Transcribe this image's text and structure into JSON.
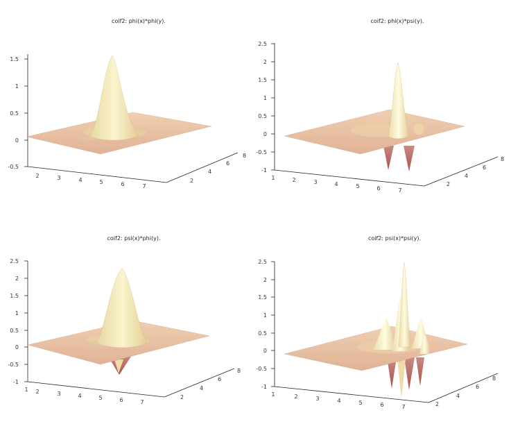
{
  "chart_data": [
    {
      "type": "surface3d",
      "title": "coif2: phi(x)*phi(y).",
      "colormap": "pink",
      "zlim": [
        -0.5,
        1.5
      ],
      "z_ticks": [
        "1.5",
        "1",
        "0.5",
        "0",
        "-0.5"
      ],
      "x_ticks": [
        "2",
        "3",
        "4",
        "5",
        "6",
        "7"
      ],
      "y_ticks": [
        "2",
        "4",
        "6",
        "8"
      ],
      "peak_z": 1.5,
      "trough_z": 0
    },
    {
      "type": "surface3d",
      "title": "coif2: phi(x)*psi(y).",
      "colormap": "pink",
      "zlim": [
        -1,
        2.5
      ],
      "z_ticks": [
        "2.5",
        "2",
        "1.5",
        "1",
        "0.5",
        "0",
        "-0.5",
        "-1"
      ],
      "x_ticks": [
        "1",
        "2",
        "3",
        "4",
        "5",
        "6",
        "7"
      ],
      "y_ticks": [
        "2",
        "4",
        "6",
        "8"
      ],
      "peak_z": 2,
      "trough_z": -1
    },
    {
      "type": "surface3d",
      "title": "coif2: psi(x)*phi(y).",
      "colormap": "pink",
      "zlim": [
        -1,
        2.5
      ],
      "z_ticks": [
        "2.5",
        "2",
        "1.5",
        "1",
        "0.5",
        "0",
        "-0.5",
        "-1"
      ],
      "x_ticks": [
        "1",
        "2",
        "3",
        "4",
        "5",
        "6",
        "7"
      ],
      "y_ticks": [
        "2",
        "4",
        "6",
        "8"
      ],
      "peak_z": 2.2,
      "trough_z": -0.8
    },
    {
      "type": "surface3d",
      "title": "coif2: psi(x)*psi(y).",
      "colormap": "pink",
      "zlim": [
        -1,
        2.5
      ],
      "z_ticks": [
        "2.5",
        "2",
        "1.5",
        "1",
        "0.5",
        "0",
        "-0.5",
        "-1"
      ],
      "x_ticks": [
        "1",
        "2",
        "3",
        "4",
        "5",
        "6",
        "7"
      ],
      "y_ticks": [
        "2",
        "4",
        "6",
        "8"
      ],
      "peak_z": 2.5,
      "trough_z": -1
    }
  ]
}
